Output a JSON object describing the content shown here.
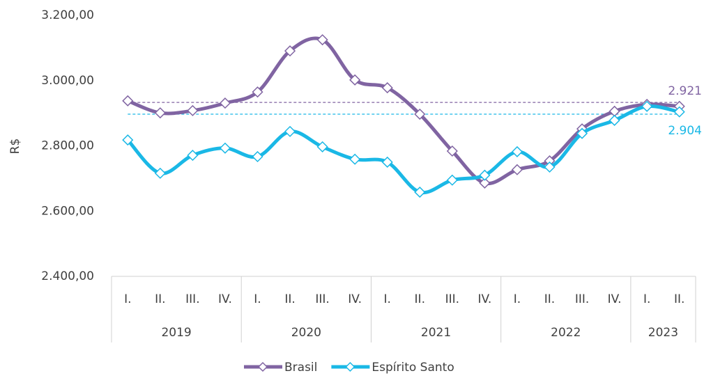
{
  "chart_data": {
    "type": "line",
    "y_label": "R$",
    "categories": [
      "I.",
      "II.",
      "III.",
      "IV.",
      "I.",
      "II.",
      "III.",
      "IV.",
      "I.",
      "II.",
      "III.",
      "IV.",
      "I.",
      "II.",
      "III.",
      "IV.",
      "I.",
      "II."
    ],
    "category_groups": [
      {
        "name": "2019",
        "size": 4
      },
      {
        "name": "2020",
        "size": 4
      },
      {
        "name": "2021",
        "size": 4
      },
      {
        "name": "2022",
        "size": 4
      },
      {
        "name": "2023",
        "size": 2
      }
    ],
    "series": [
      {
        "name": "Brasil",
        "color": "#8064a2",
        "reference_line": 2933,
        "values": [
          2938,
          2901,
          2908,
          2931,
          2965,
          3091,
          3125,
          3002,
          2978,
          2897,
          2784,
          2686,
          2727,
          2754,
          2852,
          2906,
          2927,
          2921
        ],
        "value_labels": [
          null,
          null,
          null,
          null,
          null,
          null,
          null,
          null,
          null,
          null,
          null,
          null,
          null,
          null,
          null,
          null,
          null,
          "2.921"
        ]
      },
      {
        "name": "Espírito Santo",
        "color": "#1ab8e6",
        "reference_line": 2897,
        "values": [
          2818,
          2716,
          2771,
          2793,
          2767,
          2844,
          2797,
          2759,
          2750,
          2658,
          2695,
          2710,
          2782,
          2735,
          2838,
          2878,
          2921,
          2904
        ],
        "value_labels": [
          null,
          null,
          null,
          null,
          null,
          null,
          null,
          null,
          null,
          null,
          null,
          null,
          null,
          null,
          null,
          null,
          null,
          "2.904"
        ]
      }
    ],
    "ylim": [
      2400,
      3200
    ],
    "yticks": [
      {
        "value": 2400,
        "label": "2.400,00"
      },
      {
        "value": 2600,
        "label": "2.600,00"
      },
      {
        "value": 2800,
        "label": "2.800,00"
      },
      {
        "value": 3000,
        "label": "3.000,00"
      },
      {
        "value": 3200,
        "label": "3.200,00"
      }
    ],
    "legend": "bottom"
  }
}
